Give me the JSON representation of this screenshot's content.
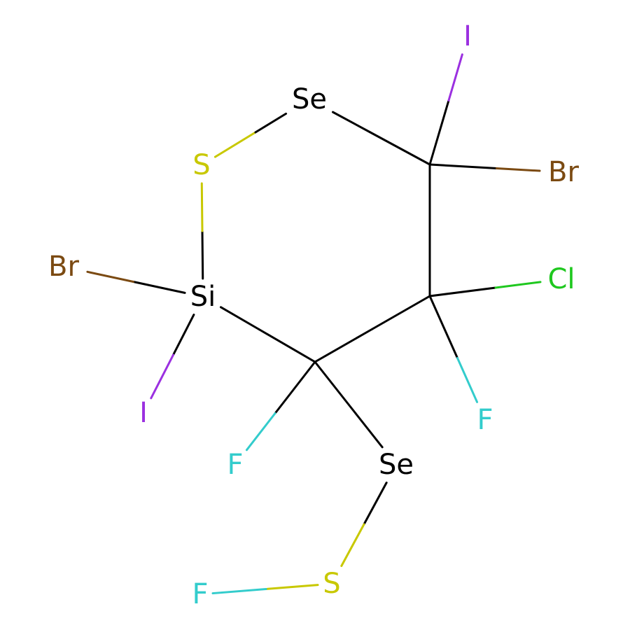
{
  "colors": {
    "C": "#000000",
    "Se": "#000000",
    "Si": "#000000",
    "S": "#C8C800",
    "Br": "#7B4A12",
    "I": "#9B30E0",
    "F": "#33CCCC",
    "Cl": "#1FC81F",
    "background": "#FFFFFF"
  },
  "atoms": [
    {
      "id": "se1",
      "element": "Se",
      "label": "Se"
    },
    {
      "id": "c1",
      "element": "C",
      "label": ""
    },
    {
      "id": "i1",
      "element": "I",
      "label": "I"
    },
    {
      "id": "br1",
      "element": "Br",
      "label": "Br"
    },
    {
      "id": "c2",
      "element": "C",
      "label": ""
    },
    {
      "id": "cl1",
      "element": "Cl",
      "label": "Cl"
    },
    {
      "id": "f1",
      "element": "F",
      "label": "F"
    },
    {
      "id": "c3",
      "element": "C",
      "label": ""
    },
    {
      "id": "f2",
      "element": "F",
      "label": "F"
    },
    {
      "id": "se2",
      "element": "Se",
      "label": "Se"
    },
    {
      "id": "s2",
      "element": "S",
      "label": "S"
    },
    {
      "id": "f3",
      "element": "F",
      "label": "F"
    },
    {
      "id": "si1",
      "element": "Si",
      "label": "Si"
    },
    {
      "id": "br2",
      "element": "Br",
      "label": "Br"
    },
    {
      "id": "i2",
      "element": "I",
      "label": "I"
    },
    {
      "id": "s1",
      "element": "S",
      "label": "S"
    }
  ],
  "bonds": [
    {
      "a": "se1",
      "b": "c1",
      "order": 1
    },
    {
      "a": "c1",
      "b": "i1",
      "order": 1
    },
    {
      "a": "c1",
      "b": "br1",
      "order": 1
    },
    {
      "a": "c1",
      "b": "c2",
      "order": 1
    },
    {
      "a": "c2",
      "b": "cl1",
      "order": 1
    },
    {
      "a": "c2",
      "b": "f1",
      "order": 1
    },
    {
      "a": "c2",
      "b": "c3",
      "order": 1
    },
    {
      "a": "c3",
      "b": "f2",
      "order": 1
    },
    {
      "a": "c3",
      "b": "se2",
      "order": 1
    },
    {
      "a": "se2",
      "b": "s2",
      "order": 1
    },
    {
      "a": "s2",
      "b": "f3",
      "order": 1
    },
    {
      "a": "c3",
      "b": "si1",
      "order": 1
    },
    {
      "a": "si1",
      "b": "br2",
      "order": 1
    },
    {
      "a": "si1",
      "b": "i2",
      "order": 1
    },
    {
      "a": "si1",
      "b": "s1",
      "order": 1
    },
    {
      "a": "s1",
      "b": "se1",
      "order": 1
    }
  ]
}
